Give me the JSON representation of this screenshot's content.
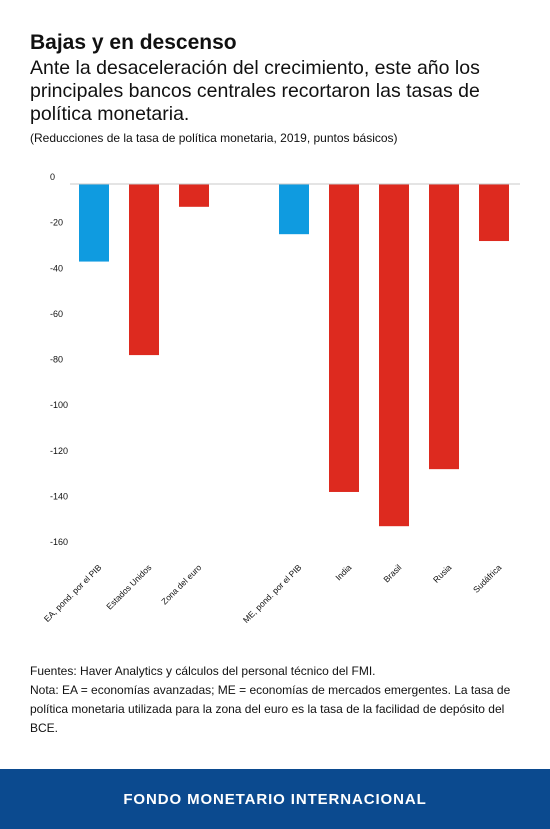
{
  "header": {
    "title": "Bajas y en descenso",
    "subtitle": "Ante la desaceleración del crecimiento, este año los principales bancos centrales recortaron las tasas de política monetaria.",
    "note": "(Reducciones de la tasa de política monetaria, 2019, puntos básicos)"
  },
  "chart_data": {
    "type": "bar",
    "categories": [
      "EA, pond. por el PIB",
      "Estados Unidos",
      "Zona del euro",
      "ME, pond. por el PIB",
      "India",
      "Brasil",
      "Rusia",
      "Sudáfrica"
    ],
    "values": [
      -34,
      -75,
      -10,
      -22,
      -135,
      -150,
      -125,
      -25
    ],
    "colors": [
      "#0f9be0",
      "#dd2a1f",
      "#dd2a1f",
      "#0f9be0",
      "#dd2a1f",
      "#dd2a1f",
      "#dd2a1f",
      "#dd2a1f"
    ],
    "ylim": [
      -160,
      0
    ],
    "yticks": [
      0,
      -20,
      -40,
      -60,
      -80,
      -100,
      -120,
      -140,
      -160
    ],
    "grid": false,
    "legend": "none"
  },
  "footer": {
    "sources": "Fuentes: Haver Analytics y cálculos del personal técnico del FMI.",
    "note": "Nota: EA = economías avanzadas; ME = economías de mercados emergentes. La tasa de política monetaria utilizada para la zona del euro es la tasa de la facilidad de depósito del BCE.",
    "org": "FONDO MONETARIO INTERNACIONAL",
    "band_color": "#0b4a8f"
  }
}
